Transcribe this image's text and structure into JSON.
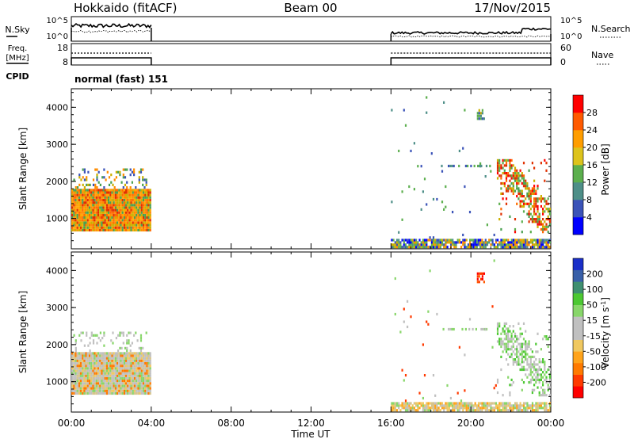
{
  "header": {
    "station": "Hokkaido (fitACF)",
    "beam": "Beam 00",
    "date": "17/Nov/2015"
  },
  "panels": {
    "nsky": {
      "left_label": "N.Sky",
      "left_ticks": [
        "10^5",
        "10^0"
      ],
      "right_label": "N.Search",
      "right_ticks": [
        "10^5",
        "10^0"
      ]
    },
    "freq": {
      "left_label_lines": [
        "Freq.",
        "[MHz]"
      ],
      "left_ticks": [
        "18",
        "8"
      ],
      "right_label": "Nave",
      "right_ticks": [
        "60",
        "0"
      ]
    },
    "cpid": {
      "label": "CPID",
      "text": "normal (fast) 151"
    }
  },
  "chart_data": [
    {
      "type": "heatmap",
      "name": "power",
      "ylabel": "Slant Range [km]",
      "xlabel": "Time UT",
      "ylim": [
        180,
        4500
      ],
      "yticks": [
        "1000",
        "2000",
        "3000",
        "4000"
      ],
      "xticks": [
        "00:00",
        "04:00",
        "08:00",
        "12:00",
        "16:00",
        "20:00",
        "00:00"
      ],
      "colorbar": {
        "label": "Power [dB]",
        "ticks": [
          "28",
          "24",
          "20",
          "16",
          "12",
          "8",
          "4"
        ],
        "colors": [
          "#0000ff",
          "#3b53b8",
          "#4e8f88",
          "#5caf4e",
          "#ddc31c",
          "#ff9d00",
          "#ff5a00",
          "#ff0000"
        ]
      },
      "regions": [
        {
          "t0": 0.0,
          "t1": 4.0,
          "r0": 650,
          "r1": 1800,
          "dense": 1.0,
          "palette": [
            "#ff8c00",
            "#ff6a00",
            "#ffa500",
            "#e03000",
            "#ccb000",
            "#4aa050"
          ]
        },
        {
          "t0": 0.1,
          "t1": 3.8,
          "r0": 1800,
          "r1": 2350,
          "dense": 0.22,
          "palette": [
            "#4aa050",
            "#ccb000",
            "#ff8c00",
            "#3b53b8"
          ]
        },
        {
          "t0": 16.0,
          "t1": 24.0,
          "r0": 200,
          "r1": 450,
          "dense": 0.85,
          "palette": [
            "#3b53b8",
            "#4e8f88",
            "#ccb000",
            "#ff8c00",
            "#0000ff",
            "#5caf4e"
          ]
        },
        {
          "t0": 21.3,
          "t1": 24.0,
          "r0": 600,
          "r1": 2600,
          "dense": 0.55,
          "palette": [
            "#ff0000",
            "#e03000",
            "#ff6a00",
            "#4aa050",
            "#ccb000",
            "#5caf4e"
          ]
        },
        {
          "t0": 20.3,
          "t1": 20.7,
          "r0": 3650,
          "r1": 3950,
          "dense": 0.7,
          "palette": [
            "#4e8f88",
            "#5caf4e",
            "#ccb000",
            "#3b53b8"
          ]
        },
        {
          "t0": 18.5,
          "t1": 21.0,
          "r0": 2350,
          "r1": 2450,
          "dense": 0.5,
          "palette": [
            "#3b53b8",
            "#4e8f88",
            "#5caf4e",
            "#0000ff"
          ]
        },
        {
          "t0": 16.0,
          "t1": 21.3,
          "r0": 450,
          "r1": 4300,
          "dense": 0.012,
          "palette": [
            "#3b53b8",
            "#4e8f88",
            "#5caf4e"
          ]
        }
      ]
    },
    {
      "type": "heatmap",
      "name": "velocity",
      "ylabel": "Slant Range [km]",
      "xlabel": "Time UT",
      "ylim": [
        180,
        4500
      ],
      "yticks": [
        "1000",
        "2000",
        "3000",
        "4000"
      ],
      "xticks": [
        "00:00",
        "04:00",
        "08:00",
        "12:00",
        "16:00",
        "20:00",
        "00:00"
      ],
      "colorbar": {
        "label": "Velocity [m s-1]",
        "ticks": [
          "200",
          "100",
          "50",
          "15",
          "-15",
          "-50",
          "-100",
          "-200"
        ],
        "colors": [
          "#ff0000",
          "#ff3a00",
          "#ff7a00",
          "#ffa31a",
          "#f0c860",
          "#c0c0c0",
          "#c0c0c0",
          "#88d66a",
          "#4cc832",
          "#3f8f70",
          "#3960a8",
          "#1a2fc8"
        ]
      },
      "regions": [
        {
          "t0": 0.0,
          "t1": 4.0,
          "r0": 650,
          "r1": 1800,
          "dense": 1.0,
          "palette": [
            "#c0c0c0",
            "#c0c0c0",
            "#c0c0c0",
            "#d6c48c",
            "#f0c860",
            "#88d66a",
            "#ff7a00"
          ]
        },
        {
          "t0": 0.1,
          "t1": 3.8,
          "r0": 1800,
          "r1": 2350,
          "dense": 0.22,
          "palette": [
            "#c0c0c0",
            "#c0c0c0",
            "#88d66a"
          ]
        },
        {
          "t0": 16.0,
          "t1": 24.0,
          "r0": 200,
          "r1": 450,
          "dense": 0.85,
          "palette": [
            "#f0c860",
            "#ffa31a",
            "#c0c0c0",
            "#d6c48c",
            "#88d66a"
          ]
        },
        {
          "t0": 21.3,
          "t1": 24.0,
          "r0": 600,
          "r1": 2600,
          "dense": 0.55,
          "palette": [
            "#c0c0c0",
            "#c0c0c0",
            "#88d66a",
            "#4cc832"
          ]
        },
        {
          "t0": 20.3,
          "t1": 20.7,
          "r0": 3650,
          "r1": 3950,
          "dense": 0.7,
          "palette": [
            "#ff0000",
            "#ff3a00",
            "#ff5a00"
          ]
        },
        {
          "t0": 18.5,
          "t1": 21.0,
          "r0": 2350,
          "r1": 2450,
          "dense": 0.5,
          "palette": [
            "#c0c0c0",
            "#88d66a"
          ]
        },
        {
          "t0": 16.0,
          "t1": 21.3,
          "r0": 450,
          "r1": 4300,
          "dense": 0.012,
          "palette": [
            "#c0c0c0",
            "#88d66a",
            "#ff3a00"
          ]
        }
      ]
    }
  ]
}
